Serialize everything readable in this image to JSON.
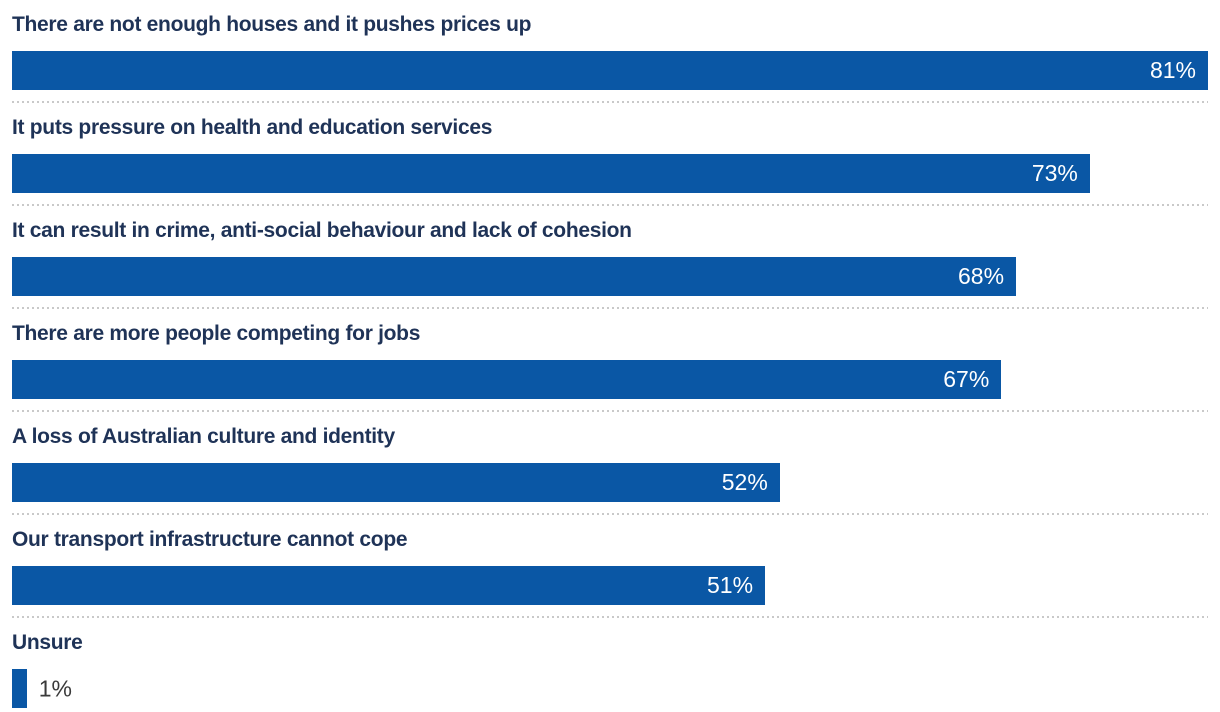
{
  "chart_data": {
    "type": "bar",
    "orientation": "horizontal",
    "title": "",
    "xlabel": "",
    "ylabel": "",
    "xlim": [
      0,
      81
    ],
    "grid": false,
    "legend": false,
    "bars_scaled_to_max": true,
    "categories": [
      "There are not enough houses and it pushes prices up",
      "It puts pressure on health and education services",
      "It can result in crime, anti-social behaviour and lack of cohesion",
      "There are more people competing for jobs",
      "A loss of Australian culture and identity",
      "Our transport infrastructure cannot cope",
      "Unsure"
    ],
    "values": [
      81,
      73,
      68,
      67,
      52,
      51,
      1
    ],
    "rows": [
      {
        "label": "There are not enough houses and it pushes prices up",
        "value": 81,
        "display": "81%"
      },
      {
        "label": "It puts pressure on health and education services",
        "value": 73,
        "display": "73%"
      },
      {
        "label": "It can result in crime, anti-social behaviour and lack of cohesion",
        "value": 68,
        "display": "68%"
      },
      {
        "label": "There are more people competing for jobs",
        "value": 67,
        "display": "67%"
      },
      {
        "label": "A loss of Australian culture and identity",
        "value": 52,
        "display": "52%"
      },
      {
        "label": "Our transport infrastructure cannot cope",
        "value": 51,
        "display": "51%"
      },
      {
        "label": "Unsure",
        "value": 1,
        "display": "1%"
      }
    ],
    "colors": {
      "bar": "#0a57a5",
      "label": "#1f3357",
      "value_inside": "#ffffff",
      "value_outside": "#3a3a3a",
      "separator": "#c9c9c9",
      "background": "#ffffff"
    }
  }
}
